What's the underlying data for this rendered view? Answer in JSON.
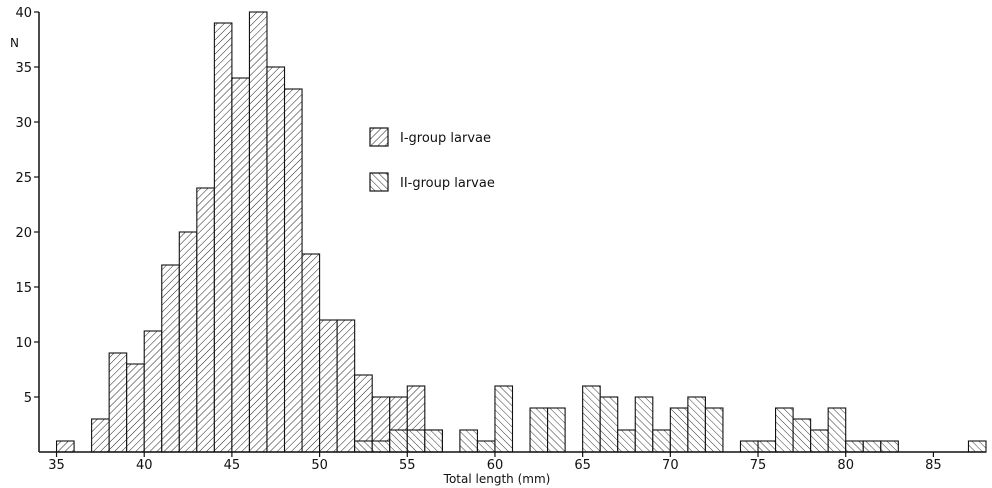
{
  "chart_data": {
    "type": "bar",
    "xlabel": "Total length (mm)",
    "ylabel": "N",
    "xlim": [
      34,
      88
    ],
    "ylim": [
      0,
      40
    ],
    "bin_width": 1,
    "xticks": [
      35,
      40,
      45,
      50,
      55,
      60,
      65,
      70,
      75,
      80,
      85
    ],
    "yticks": [
      5,
      10,
      15,
      20,
      25,
      30,
      35,
      40
    ],
    "legend_position": "upper-middle",
    "series": [
      {
        "name": "I-group larvae",
        "pattern": "diagonal-forward",
        "x": [
          35,
          37,
          38,
          39,
          40,
          41,
          42,
          43,
          44,
          45,
          46,
          47,
          48,
          49,
          50,
          51,
          52,
          53,
          54,
          55,
          56
        ],
        "values": [
          1,
          3,
          9,
          8,
          11,
          17,
          20,
          24,
          39,
          34,
          40,
          35,
          33,
          18,
          12,
          12,
          7,
          5,
          5,
          6,
          2
        ]
      },
      {
        "name": "II-group larvae",
        "pattern": "diagonal-backward",
        "x": [
          52,
          53,
          54,
          55,
          56,
          58,
          59,
          60,
          62,
          63,
          65,
          66,
          67,
          68,
          69,
          70,
          71,
          72,
          74,
          75,
          76,
          77,
          78,
          79,
          80,
          81,
          82,
          87
        ],
        "values": [
          1,
          1,
          2,
          2,
          2,
          2,
          1,
          6,
          4,
          4,
          6,
          5,
          2,
          5,
          2,
          4,
          5,
          4,
          1,
          1,
          4,
          3,
          2,
          4,
          1,
          1,
          1,
          1
        ]
      }
    ]
  }
}
